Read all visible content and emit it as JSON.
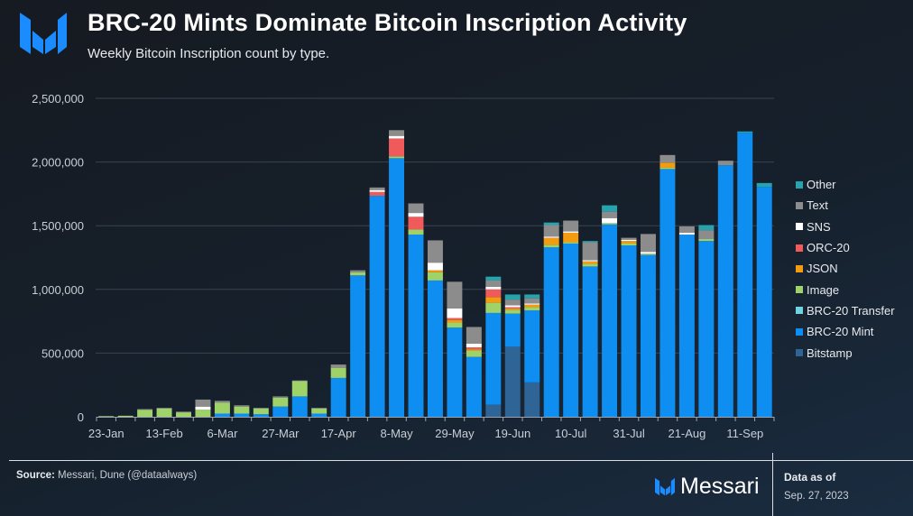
{
  "header": {
    "title": "BRC-20 Mints Dominate Bitcoin Inscription Activity",
    "subtitle": "Weekly Bitcoin Inscription count by type."
  },
  "footer": {
    "source_label": "Source:",
    "source_text": " Messari, Dune (@dataalways)",
    "brand": "Messari",
    "as_of_label": "Data as of",
    "as_of_date": "Sep. 27, 2023"
  },
  "colors": {
    "brand": "#1a8cff",
    "Bitstamp": "#2f6496",
    "BRC-20 Mint": "#0d8ef0",
    "BRC-20 Transfer": "#6fd3e0",
    "Image": "#9fd36a",
    "JSON": "#f39c12",
    "ORC-20": "#f05a5a",
    "SNS": "#ffffff",
    "Text": "#8c8c8c",
    "Other": "#27a3ad"
  },
  "legend": [
    "Other",
    "Text",
    "SNS",
    "ORC-20",
    "JSON",
    "Image",
    "BRC-20 Transfer",
    "BRC-20 Mint",
    "Bitstamp"
  ],
  "chart_data": {
    "type": "bar",
    "stacked": true,
    "title": "BRC-20 Mints Dominate Bitcoin Inscription Activity",
    "subtitle": "Weekly Bitcoin Inscription count by type.",
    "xlabel": "",
    "ylabel": "",
    "ylim": [
      0,
      2500000
    ],
    "yticks": [
      0,
      500000,
      1000000,
      1500000,
      2000000,
      2500000
    ],
    "ytick_labels": [
      "0",
      "500,000",
      "1,000,000",
      "1,500,000",
      "2,000,000",
      "2,500,000"
    ],
    "grid": true,
    "legend_position": "right",
    "categories": [
      "23-Jan",
      "30-Jan",
      "6-Feb",
      "13-Feb",
      "20-Feb",
      "27-Feb",
      "6-Mar",
      "13-Mar",
      "20-Mar",
      "27-Mar",
      "3-Apr",
      "10-Apr",
      "17-Apr",
      "24-Apr",
      "1-May",
      "8-May",
      "15-May",
      "22-May",
      "29-May",
      "5-Jun",
      "12-Jun",
      "19-Jun",
      "26-Jun",
      "3-Jul",
      "10-Jul",
      "17-Jul",
      "24-Jul",
      "31-Jul",
      "7-Aug",
      "14-Aug",
      "21-Aug",
      "28-Aug",
      "4-Sep",
      "11-Sep",
      "18-Sep"
    ],
    "xtick_labels": [
      "23-Jan",
      "13-Feb",
      "6-Mar",
      "27-Mar",
      "17-Apr",
      "8-May",
      "29-May",
      "19-Jun",
      "10-Jul",
      "31-Jul",
      "21-Aug",
      "11-Sep"
    ],
    "series": [
      {
        "name": "Bitstamp",
        "values": [
          0,
          0,
          0,
          0,
          0,
          0,
          0,
          0,
          0,
          0,
          0,
          0,
          0,
          0,
          0,
          0,
          0,
          0,
          0,
          0,
          95000,
          550000,
          270000,
          0,
          0,
          0,
          0,
          0,
          0,
          0,
          0,
          0,
          0,
          0,
          0
        ]
      },
      {
        "name": "BRC-20 Mint",
        "values": [
          0,
          0,
          0,
          0,
          0,
          0,
          25000,
          25000,
          20000,
          80000,
          160000,
          25000,
          305000,
          1110000,
          1735000,
          2030000,
          1430000,
          1070000,
          700000,
          470000,
          720000,
          260000,
          565000,
          1330000,
          1360000,
          1180000,
          1510000,
          1345000,
          1270000,
          1945000,
          1430000,
          1380000,
          1975000,
          2230000,
          1805000
        ]
      },
      {
        "name": "BRC-20 Transfer",
        "values": [
          0,
          0,
          0,
          0,
          0,
          0,
          0,
          0,
          0,
          0,
          0,
          0,
          0,
          0,
          0,
          0,
          0,
          0,
          0,
          0,
          0,
          0,
          0,
          0,
          0,
          0,
          0,
          0,
          0,
          0,
          0,
          0,
          0,
          0,
          0
        ]
      },
      {
        "name": "Image",
        "values": [
          5000,
          8000,
          55000,
          65000,
          35000,
          55000,
          85000,
          55000,
          45000,
          70000,
          120000,
          40000,
          80000,
          25000,
          0,
          15000,
          40000,
          65000,
          40000,
          50000,
          80000,
          30000,
          25000,
          20000,
          10000,
          20000,
          10000,
          15000,
          10000,
          10000,
          0,
          15000,
          0,
          0,
          0
        ]
      },
      {
        "name": "JSON",
        "values": [
          0,
          0,
          0,
          0,
          0,
          0,
          0,
          0,
          0,
          0,
          0,
          0,
          0,
          0,
          0,
          0,
          0,
          15000,
          20000,
          10000,
          45000,
          10000,
          20000,
          55000,
          75000,
          20000,
          0,
          20000,
          0,
          40000,
          0,
          0,
          0,
          0,
          0
        ]
      },
      {
        "name": "ORC-20",
        "values": [
          0,
          0,
          0,
          0,
          0,
          0,
          0,
          0,
          0,
          0,
          0,
          0,
          0,
          0,
          30000,
          140000,
          100000,
          0,
          15000,
          15000,
          60000,
          10000,
          0,
          0,
          0,
          0,
          0,
          0,
          0,
          0,
          0,
          0,
          0,
          0,
          0
        ]
      },
      {
        "name": "SNS",
        "values": [
          0,
          0,
          0,
          0,
          0,
          25000,
          0,
          0,
          0,
          0,
          0,
          0,
          0,
          0,
          15000,
          20000,
          30000,
          60000,
          75000,
          30000,
          20000,
          15000,
          10000,
          10000,
          10000,
          10000,
          40000,
          10000,
          15000,
          0,
          15000,
          0,
          0,
          0,
          0
        ]
      },
      {
        "name": "Text",
        "values": [
          0,
          0,
          5000,
          5000,
          5000,
          55000,
          15000,
          10000,
          5000,
          10000,
          5000,
          5000,
          25000,
          15000,
          20000,
          45000,
          75000,
          175000,
          210000,
          130000,
          50000,
          45000,
          40000,
          90000,
          85000,
          140000,
          50000,
          15000,
          140000,
          60000,
          50000,
          70000,
          35000,
          0,
          0
        ]
      },
      {
        "name": "Other",
        "values": [
          0,
          0,
          0,
          0,
          0,
          0,
          0,
          0,
          0,
          0,
          0,
          0,
          0,
          0,
          0,
          0,
          0,
          0,
          0,
          0,
          30000,
          40000,
          30000,
          20000,
          0,
          10000,
          50000,
          0,
          0,
          0,
          0,
          40000,
          0,
          10000,
          30000
        ]
      }
    ]
  }
}
